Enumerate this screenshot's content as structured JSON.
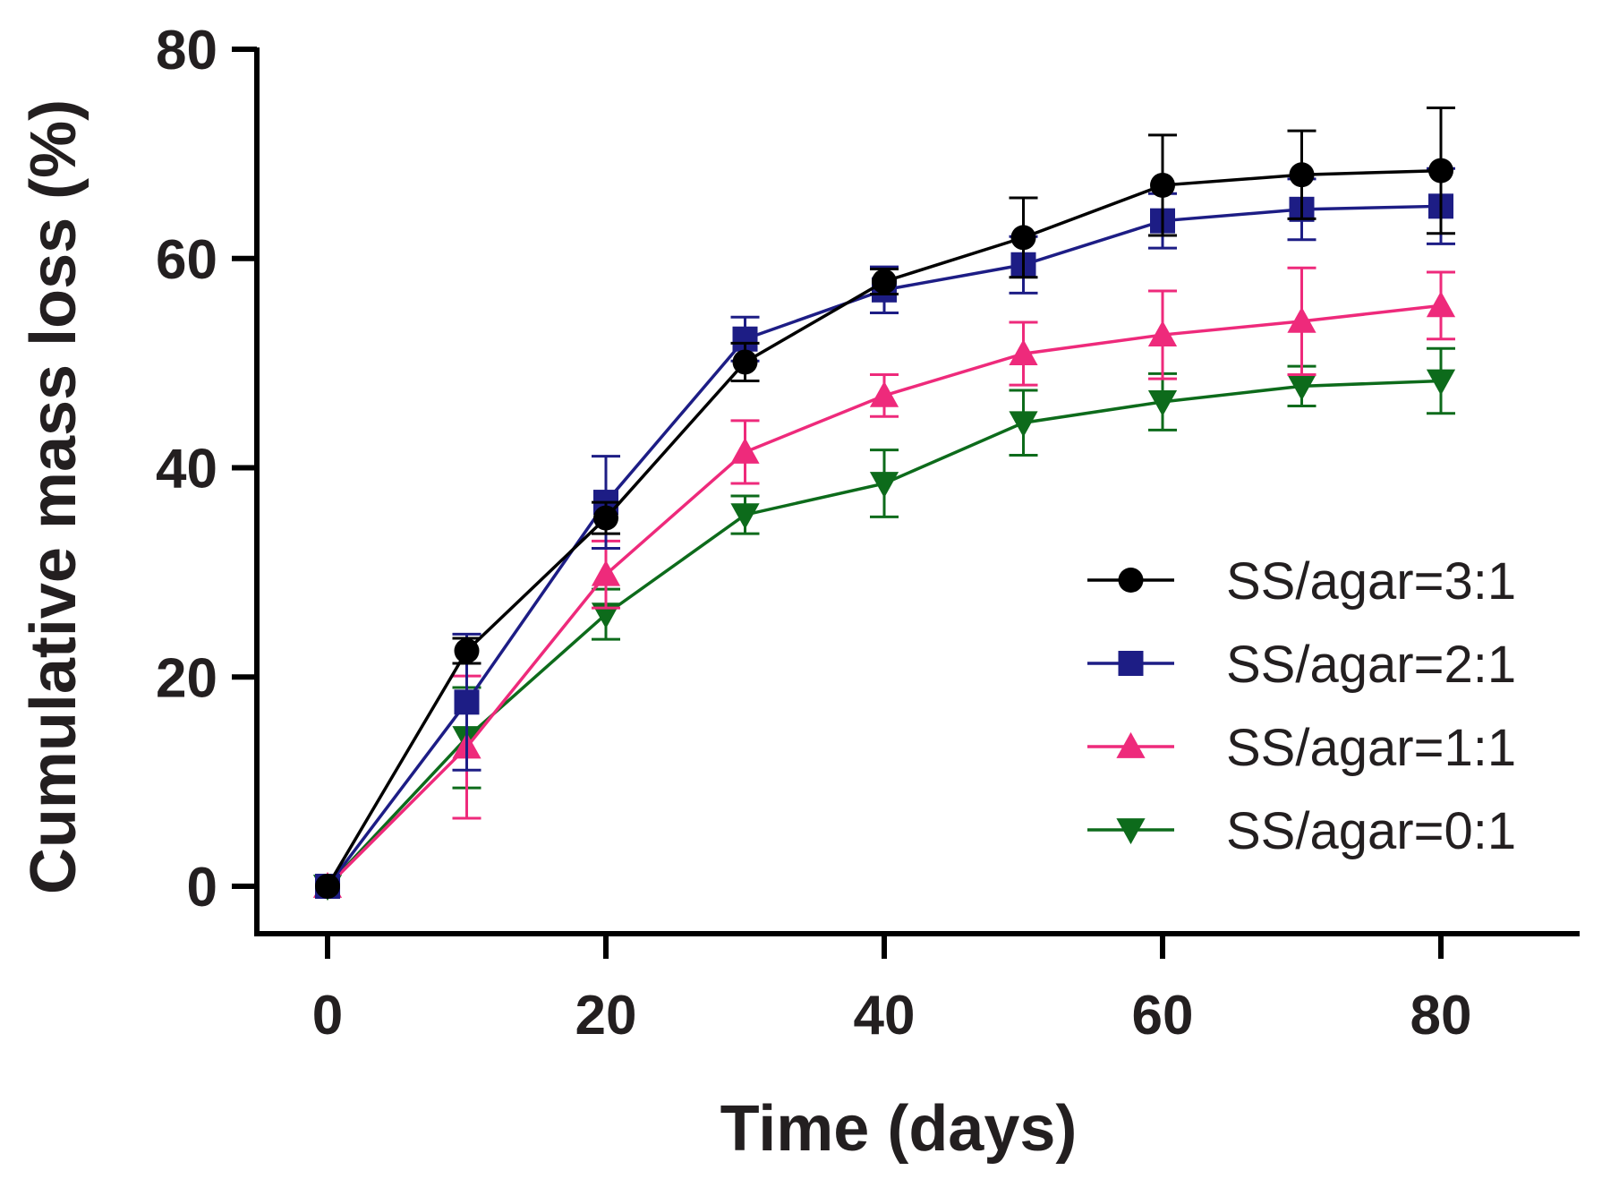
{
  "chart_data": {
    "type": "line",
    "title": "",
    "xlabel": "Time (days)",
    "ylabel": "Cumulative mass loss (%)",
    "xlim": [
      -5,
      90
    ],
    "ylim": [
      -5,
      80
    ],
    "xticks": [
      0,
      20,
      40,
      60,
      80
    ],
    "yticks": [
      0,
      20,
      40,
      60,
      80
    ],
    "x": [
      0,
      10,
      20,
      30,
      40,
      50,
      60,
      70,
      80
    ],
    "grid": false,
    "legend_position": "right",
    "series": [
      {
        "name": "SS/agar=3:1",
        "color": "#000000",
        "marker": "circle",
        "values": [
          0,
          22.5,
          35.2,
          50.1,
          57.8,
          62.0,
          67.0,
          68.0,
          68.4
        ],
        "errors": [
          0,
          1.2,
          1.5,
          1.8,
          1.2,
          3.8,
          4.8,
          4.2,
          6.0
        ]
      },
      {
        "name": "SS/agar=2:1",
        "color": "#1d1d85",
        "marker": "square",
        "values": [
          0,
          17.6,
          36.7,
          52.3,
          57.0,
          59.4,
          63.6,
          64.7,
          65.0
        ],
        "errors": [
          0,
          6.5,
          4.4,
          2.1,
          2.2,
          2.7,
          2.6,
          2.9,
          3.6
        ]
      },
      {
        "name": "SS/agar=1:1",
        "color": "#ee2a7b",
        "marker": "triangle-up",
        "values": [
          0,
          13.3,
          29.8,
          41.5,
          46.9,
          50.9,
          52.7,
          54.0,
          55.5
        ],
        "errors": [
          0,
          6.8,
          3.2,
          3.0,
          2.0,
          3.0,
          4.2,
          5.1,
          3.2
        ]
      },
      {
        "name": "SS/agar=0:1",
        "color": "#0d6b1b",
        "marker": "triangle-down",
        "values": [
          0,
          14.2,
          26.0,
          35.5,
          38.5,
          44.3,
          46.3,
          47.8,
          48.3
        ],
        "errors": [
          0,
          4.8,
          2.4,
          1.8,
          3.2,
          3.1,
          2.7,
          1.9,
          3.1
        ]
      }
    ]
  }
}
